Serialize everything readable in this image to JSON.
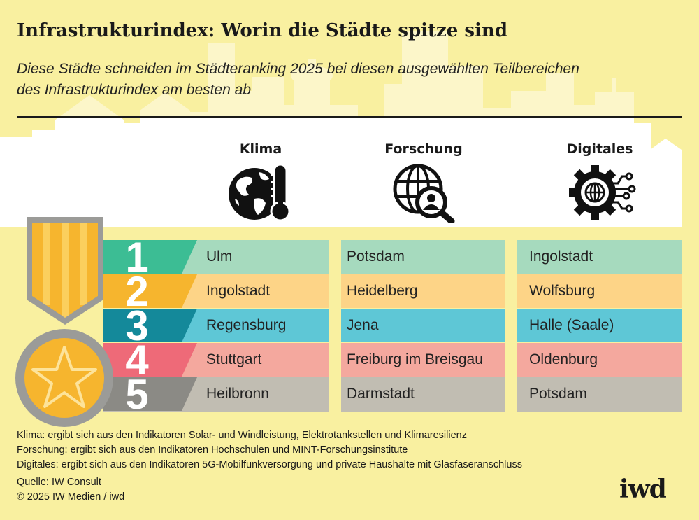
{
  "title": "Infrastrukturindex: Worin die Städte spitze sind",
  "subtitle": [
    "Diese Städte schneiden im Städteranking 2025 bei diesen ausgewählten Teilbereichen",
    "des Infrastrukturindex am besten ab"
  ],
  "colors": {
    "background": "#f9f0a0",
    "skyline_upper": "#fcf6c9",
    "skyline_lower": "#ffffff",
    "medal_gray": "#9b9b98",
    "medal_gold": "#f6b52e"
  },
  "ranks": [
    {
      "label": "1",
      "band": "#3cbd94",
      "cell": "#a6dabe"
    },
    {
      "label": "2",
      "band": "#f6b52e",
      "cell": "#fdd487"
    },
    {
      "label": "3",
      "band": "#14899a",
      "cell": "#5ec7d6"
    },
    {
      "label": "4",
      "band": "#ee6a78",
      "cell": "#f4a89e"
    },
    {
      "label": "5",
      "band": "#8b8a85",
      "cell": "#c1bdb2"
    }
  ],
  "columns": [
    {
      "header": "Klima",
      "icon": "globe-thermometer-icon",
      "cities": [
        "Ulm",
        "Ingolstadt",
        "Regensburg",
        "Stuttgart",
        "Heilbronn"
      ]
    },
    {
      "header": "Forschung",
      "icon": "globe-magnifier-icon",
      "cities": [
        "Potsdam",
        "Heidelberg",
        "Jena",
        "Freiburg im Breisgau",
        "Darmstadt"
      ]
    },
    {
      "header": "Digitales",
      "icon": "gear-circuit-icon",
      "cities": [
        "Ingolstadt",
        "Wolfsburg",
        "Halle (Saale)",
        "Oldenburg",
        "Potsdam"
      ]
    }
  ],
  "medal_icon": "medal-star-icon",
  "footnotes": [
    "Klima: ergibt sich aus den Indikatoren Solar- und Windleistung, Elektrotankstellen und Klimaresilienz",
    "Forschung: ergibt sich aus den Indikatoren Hochschulen und MINT-Forschungsinstitute",
    "Digitales: ergibt sich aus den Indikatoren 5G-Mobilfunkversorgung und private Haushalte mit Glasfaseranschluss"
  ],
  "source": "Quelle: IW Consult",
  "copyright": "© 2025 IW Medien / iwd",
  "logo": "iwd"
}
